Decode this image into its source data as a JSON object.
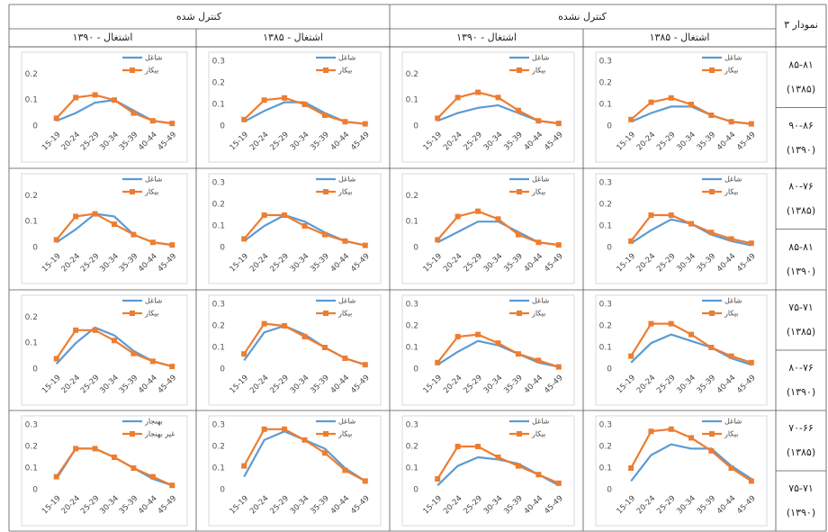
{
  "table": {
    "corner": "نمودار ۳",
    "groups": [
      "کنترل شده",
      "کنترل نشده"
    ],
    "columns": [
      "اشتغال - ۱۳۹۰",
      "اشتغال - ۱۳۸۵",
      "اشتغال - ۱۳۹۰",
      "اشتغال - ۱۳۸۵"
    ],
    "rows": [
      [
        {
          "range": "۸۵-۸۱",
          "year": "(۱۳۸۵)"
        },
        {
          "range": "۹۰-۸۶",
          "year": "(۱۳۹۰)"
        }
      ],
      [
        {
          "range": "۸۰-۷۶",
          "year": "(۱۳۸۵)"
        },
        {
          "range": "۸۵-۸۱",
          "year": "(۱۳۹۰)"
        }
      ],
      [
        {
          "range": "۷۵-۷۱",
          "year": "(۱۳۸۵)"
        },
        {
          "range": "۸۰-۷۶",
          "year": "(۱۳۹۰)"
        }
      ],
      [
        {
          "range": "۷۰-۶۶",
          "year": "(۱۳۸۵)"
        },
        {
          "range": "۷۵-۷۱",
          "year": "(۱۳۹۰)"
        }
      ]
    ]
  },
  "chart_data": [
    {
      "type": "line",
      "categories": [
        "15-19",
        "20-24",
        "25-29",
        "30-34",
        "35-39",
        "40-44",
        "45-49"
      ],
      "ylim": [
        0,
        0.25
      ],
      "yticks": [
        0,
        0.1,
        0.2
      ],
      "series": [
        {
          "name": "شاغل",
          "color": "#5b9bd5",
          "values": [
            0.02,
            0.05,
            0.09,
            0.1,
            0.06,
            0.02,
            0.01
          ]
        },
        {
          "name": "بیکار",
          "color": "#ed7d31",
          "values": [
            0.03,
            0.11,
            0.12,
            0.1,
            0.05,
            0.02,
            0.01
          ]
        }
      ]
    },
    {
      "type": "line",
      "categories": [
        "15-19",
        "20-24",
        "25-29",
        "30-34",
        "35-39",
        "40-44",
        "45-49"
      ],
      "ylim": [
        0,
        0.3
      ],
      "yticks": [
        0,
        0.1,
        0.2,
        0.3
      ],
      "series": [
        {
          "name": "شاغل",
          "color": "#5b9bd5",
          "values": [
            0.02,
            0.07,
            0.11,
            0.11,
            0.06,
            0.02,
            0.01
          ]
        },
        {
          "name": "بیکار",
          "color": "#ed7d31",
          "values": [
            0.03,
            0.12,
            0.13,
            0.1,
            0.05,
            0.02,
            0.01
          ]
        }
      ]
    },
    {
      "type": "line",
      "categories": [
        "15-19",
        "20-24",
        "25-29",
        "30-34",
        "35-39",
        "40-44",
        "45-49"
      ],
      "ylim": [
        0,
        0.25
      ],
      "yticks": [
        0,
        0.1,
        0.2
      ],
      "series": [
        {
          "name": "شاغل",
          "color": "#5b9bd5",
          "values": [
            0.02,
            0.05,
            0.07,
            0.08,
            0.05,
            0.02,
            0.01
          ]
        },
        {
          "name": "بیکار",
          "color": "#ed7d31",
          "values": [
            0.03,
            0.11,
            0.13,
            0.11,
            0.06,
            0.02,
            0.01
          ]
        }
      ]
    },
    {
      "type": "line",
      "categories": [
        "15-19",
        "20-24",
        "25-29",
        "30-34",
        "35-39",
        "40-44",
        "45-49"
      ],
      "ylim": [
        0,
        0.3
      ],
      "yticks": [
        0,
        0.1,
        0.2,
        0.3
      ],
      "series": [
        {
          "name": "شاغل",
          "color": "#5b9bd5",
          "values": [
            0.02,
            0.06,
            0.09,
            0.09,
            0.05,
            0.02,
            0.01
          ]
        },
        {
          "name": "بیکار",
          "color": "#ed7d31",
          "values": [
            0.03,
            0.11,
            0.13,
            0.1,
            0.05,
            0.02,
            0.01
          ]
        }
      ]
    },
    {
      "type": "line",
      "categories": [
        "15-19",
        "20-24",
        "25-29",
        "30-34",
        "35-39",
        "40-44",
        "45-49"
      ],
      "ylim": [
        0,
        0.25
      ],
      "yticks": [
        0,
        0.1,
        0.2
      ],
      "series": [
        {
          "name": "شاغل",
          "color": "#5b9bd5",
          "values": [
            0.02,
            0.07,
            0.13,
            0.12,
            0.05,
            0.02,
            0.01
          ]
        },
        {
          "name": "بیکار",
          "color": "#ed7d31",
          "values": [
            0.03,
            0.12,
            0.13,
            0.09,
            0.05,
            0.02,
            0.01
          ]
        }
      ]
    },
    {
      "type": "line",
      "categories": [
        "15-19",
        "20-24",
        "25-29",
        "30-34",
        "35-39",
        "40-44",
        "45-49"
      ],
      "ylim": [
        0,
        0.3
      ],
      "yticks": [
        0,
        0.1,
        0.2,
        0.3
      ],
      "series": [
        {
          "name": "شاغل",
          "color": "#5b9bd5",
          "values": [
            0.03,
            0.1,
            0.15,
            0.12,
            0.07,
            0.03,
            0.01
          ]
        },
        {
          "name": "بیکار",
          "color": "#ed7d31",
          "values": [
            0.04,
            0.15,
            0.15,
            0.1,
            0.06,
            0.03,
            0.01
          ]
        }
      ]
    },
    {
      "type": "line",
      "categories": [
        "15-19",
        "20-24",
        "25-29",
        "30-34",
        "35-39",
        "40-44",
        "45-49"
      ],
      "ylim": [
        0,
        0.25
      ],
      "yticks": [
        0,
        0.1,
        0.2
      ],
      "series": [
        {
          "name": "شاغل",
          "color": "#5b9bd5",
          "values": [
            0.02,
            0.06,
            0.1,
            0.1,
            0.06,
            0.02,
            0.01
          ]
        },
        {
          "name": "بیکار",
          "color": "#ed7d31",
          "values": [
            0.03,
            0.12,
            0.14,
            0.11,
            0.05,
            0.02,
            0.01
          ]
        }
      ]
    },
    {
      "type": "line",
      "categories": [
        "15-19",
        "20-24",
        "25-29",
        "30-34",
        "35-39",
        "40-44",
        "45-49"
      ],
      "ylim": [
        0,
        0.3
      ],
      "yticks": [
        0,
        0.1,
        0.2,
        0.3
      ],
      "series": [
        {
          "name": "شاغل",
          "color": "#5b9bd5",
          "values": [
            0.02,
            0.08,
            0.13,
            0.11,
            0.06,
            0.03,
            0.01
          ]
        },
        {
          "name": "بیکار",
          "color": "#ed7d31",
          "values": [
            0.03,
            0.15,
            0.15,
            0.11,
            0.07,
            0.04,
            0.02
          ]
        }
      ]
    },
    {
      "type": "line",
      "categories": [
        "15-19",
        "20-24",
        "25-29",
        "30-34",
        "35-39",
        "40-44",
        "45-49"
      ],
      "ylim": [
        0,
        0.25
      ],
      "yticks": [
        0,
        0.1,
        0.2
      ],
      "series": [
        {
          "name": "شاغل",
          "color": "#5b9bd5",
          "values": [
            0.02,
            0.1,
            0.16,
            0.13,
            0.07,
            0.03,
            0.01
          ]
        },
        {
          "name": "بیکار",
          "color": "#ed7d31",
          "values": [
            0.04,
            0.15,
            0.15,
            0.11,
            0.06,
            0.03,
            0.01
          ]
        }
      ]
    },
    {
      "type": "line",
      "categories": [
        "15-19",
        "20-24",
        "25-29",
        "30-34",
        "35-39",
        "40-44",
        "45-49"
      ],
      "ylim": [
        0,
        0.3
      ],
      "yticks": [
        0,
        0.1,
        0.2,
        0.3
      ],
      "series": [
        {
          "name": "شاغل",
          "color": "#5b9bd5",
          "values": [
            0.04,
            0.17,
            0.2,
            0.16,
            0.1,
            0.05,
            0.02
          ]
        },
        {
          "name": "بیکار",
          "color": "#ed7d31",
          "values": [
            0.07,
            0.21,
            0.2,
            0.15,
            0.1,
            0.05,
            0.02
          ]
        }
      ]
    },
    {
      "type": "line",
      "categories": [
        "15-19",
        "20-24",
        "25-29",
        "30-34",
        "35-39",
        "40-44",
        "45-49"
      ],
      "ylim": [
        0,
        0.3
      ],
      "yticks": [
        0,
        0.1,
        0.2,
        0.3
      ],
      "series": [
        {
          "name": "شاغل",
          "color": "#5b9bd5",
          "values": [
            0.02,
            0.08,
            0.13,
            0.11,
            0.07,
            0.03,
            0.01
          ]
        },
        {
          "name": "بیکار",
          "color": "#ed7d31",
          "values": [
            0.03,
            0.15,
            0.16,
            0.12,
            0.07,
            0.04,
            0.01
          ]
        }
      ]
    },
    {
      "type": "line",
      "categories": [
        "15-19",
        "20-24",
        "25-29",
        "30-34",
        "35-39",
        "40-44",
        "45-49"
      ],
      "ylim": [
        0,
        0.3
      ],
      "yticks": [
        0,
        0.1,
        0.2,
        0.3
      ],
      "series": [
        {
          "name": "شاغل",
          "color": "#5b9bd5",
          "values": [
            0.03,
            0.12,
            0.16,
            0.13,
            0.1,
            0.05,
            0.02
          ]
        },
        {
          "name": "بیکار",
          "color": "#ed7d31",
          "values": [
            0.06,
            0.21,
            0.21,
            0.16,
            0.1,
            0.06,
            0.03
          ]
        }
      ]
    },
    {
      "type": "line",
      "categories": [
        "15-19",
        "20-24",
        "25-29",
        "30-34",
        "35-39",
        "40-44",
        "45-49"
      ],
      "ylim": [
        0,
        0.3
      ],
      "yticks": [
        0,
        0.1,
        0.2,
        0.3
      ],
      "series": [
        {
          "name": "بهنجار",
          "color": "#5b9bd5",
          "values": [
            0.05,
            0.19,
            0.19,
            0.15,
            0.1,
            0.05,
            0.02
          ]
        },
        {
          "name": "غیر بهنجار",
          "color": "#ed7d31",
          "values": [
            0.06,
            0.19,
            0.19,
            0.15,
            0.1,
            0.06,
            0.02
          ]
        }
      ]
    },
    {
      "type": "line",
      "categories": [
        "15-19",
        "20-24",
        "25-29",
        "30-34",
        "35-39",
        "40-44",
        "45-49"
      ],
      "ylim": [
        0,
        0.3
      ],
      "yticks": [
        0,
        0.1,
        0.2,
        0.3
      ],
      "series": [
        {
          "name": "شاغل",
          "color": "#5b9bd5",
          "values": [
            0.06,
            0.23,
            0.27,
            0.23,
            0.19,
            0.1,
            0.04
          ]
        },
        {
          "name": "بیکار",
          "color": "#ed7d31",
          "values": [
            0.11,
            0.28,
            0.28,
            0.23,
            0.17,
            0.09,
            0.04
          ]
        }
      ]
    },
    {
      "type": "line",
      "categories": [
        "15-19",
        "20-24",
        "25-29",
        "30-34",
        "35-39",
        "40-44",
        "45-49"
      ],
      "ylim": [
        0,
        0.3
      ],
      "yticks": [
        0,
        0.1,
        0.2,
        0.3
      ],
      "series": [
        {
          "name": "شاغل",
          "color": "#5b9bd5",
          "values": [
            0.02,
            0.11,
            0.15,
            0.14,
            0.12,
            0.07,
            0.02
          ]
        },
        {
          "name": "بیکار",
          "color": "#ed7d31",
          "values": [
            0.05,
            0.2,
            0.2,
            0.15,
            0.11,
            0.07,
            0.03
          ]
        }
      ]
    },
    {
      "type": "line",
      "categories": [
        "15-19",
        "20-24",
        "25-29",
        "30-34",
        "35-39",
        "40-44",
        "45-49"
      ],
      "ylim": [
        0,
        0.3
      ],
      "yticks": [
        0,
        0.1,
        0.2,
        0.3
      ],
      "series": [
        {
          "name": "شاغل",
          "color": "#5b9bd5",
          "values": [
            0.04,
            0.16,
            0.21,
            0.19,
            0.19,
            0.11,
            0.05
          ]
        },
        {
          "name": "بیکار",
          "color": "#ed7d31",
          "values": [
            0.1,
            0.27,
            0.28,
            0.24,
            0.18,
            0.1,
            0.04
          ]
        }
      ]
    }
  ]
}
